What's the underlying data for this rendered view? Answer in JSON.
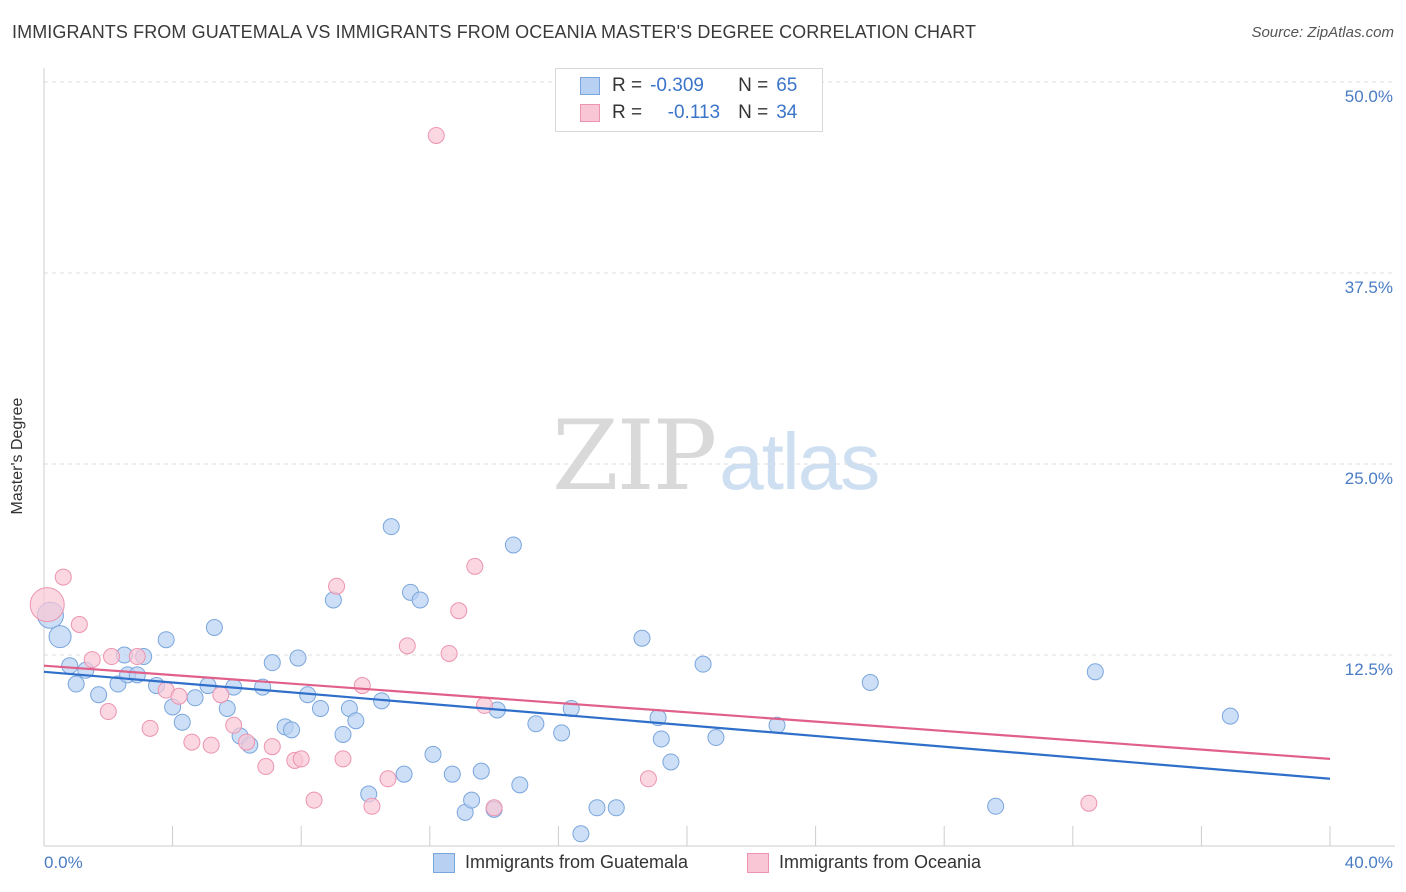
{
  "header": {
    "title": "IMMIGRANTS FROM GUATEMALA VS IMMIGRANTS FROM OCEANIA MASTER'S DEGREE CORRELATION CHART",
    "source": "Source: ZipAtlas.com"
  },
  "watermark": {
    "zip": "ZIP",
    "atlas": "atlas"
  },
  "legend": {
    "guatemala": {
      "r_label": "R =",
      "r_value": "-0.309",
      "n_label": "N =",
      "n_value": "65"
    },
    "oceania": {
      "r_label": "R =",
      "r_value": "-0.113",
      "n_label": "N =",
      "n_value": "34"
    }
  },
  "axes": {
    "y_label": "Master's Degree",
    "y_ticks": [
      "50.0%",
      "37.5%",
      "25.0%",
      "12.5%"
    ],
    "x_min_label": "0.0%",
    "x_max_label": "40.0%"
  },
  "colors": {
    "guatemala_fill": "#b8d1f2",
    "guatemala_stroke": "#7aa6dd",
    "guatemala_line": "#2f6fca",
    "oceania_fill": "#f9c6d6",
    "oceania_stroke": "#ec94b0",
    "oceania_line": "#e0608a",
    "tick_text": "#4a7cc4"
  },
  "chart_data": {
    "type": "scatter",
    "title": "IMMIGRANTS FROM GUATEMALA VS IMMIGRANTS FROM OCEANIA MASTER'S DEGREE CORRELATION CHART",
    "xlabel": "",
    "ylabel": "Master's Degree",
    "xlim": [
      0,
      40
    ],
    "ylim": [
      0,
      51
    ],
    "grid": true,
    "legend_position": "top-center",
    "series": [
      {
        "name": "Immigrants from Guatemala",
        "r": -0.309,
        "n": 65,
        "trend": {
          "x": [
            0,
            40
          ],
          "y": [
            11.4,
            4.4
          ]
        },
        "points": [
          [
            0.2,
            15.1,
            "l"
          ],
          [
            0.5,
            13.7,
            "m"
          ],
          [
            0.8,
            11.8
          ],
          [
            1.0,
            10.6
          ],
          [
            1.3,
            11.5
          ],
          [
            1.7,
            9.9
          ],
          [
            2.3,
            10.6
          ],
          [
            2.5,
            12.5
          ],
          [
            2.6,
            11.2
          ],
          [
            2.9,
            11.2
          ],
          [
            3.1,
            12.4
          ],
          [
            3.5,
            10.5
          ],
          [
            3.8,
            13.5
          ],
          [
            4.0,
            9.1
          ],
          [
            4.3,
            8.1
          ],
          [
            4.7,
            9.7
          ],
          [
            5.1,
            10.5
          ],
          [
            5.3,
            14.3
          ],
          [
            5.7,
            9.0
          ],
          [
            5.9,
            10.4
          ],
          [
            6.1,
            7.2
          ],
          [
            6.4,
            6.6
          ],
          [
            6.8,
            10.4
          ],
          [
            7.1,
            12.0
          ],
          [
            7.5,
            7.8
          ],
          [
            7.7,
            7.6
          ],
          [
            7.9,
            12.3
          ],
          [
            8.2,
            9.9
          ],
          [
            8.6,
            9.0
          ],
          [
            9.0,
            16.1
          ],
          [
            9.3,
            7.3
          ],
          [
            9.5,
            9.0
          ],
          [
            9.7,
            8.2
          ],
          [
            10.1,
            3.4
          ],
          [
            10.5,
            9.5
          ],
          [
            10.8,
            20.9
          ],
          [
            11.2,
            4.7
          ],
          [
            11.4,
            16.6
          ],
          [
            11.7,
            16.1
          ],
          [
            12.1,
            6.0
          ],
          [
            12.7,
            4.7
          ],
          [
            13.1,
            2.2
          ],
          [
            13.3,
            3.0
          ],
          [
            13.6,
            4.9
          ],
          [
            14.0,
            2.4
          ],
          [
            14.1,
            8.9
          ],
          [
            14.6,
            19.7
          ],
          [
            14.8,
            4.0
          ],
          [
            15.3,
            8.0
          ],
          [
            16.1,
            7.4
          ],
          [
            16.4,
            9.0
          ],
          [
            16.7,
            0.8
          ],
          [
            17.2,
            2.5
          ],
          [
            17.8,
            2.5
          ],
          [
            18.6,
            13.6
          ],
          [
            19.1,
            8.4
          ],
          [
            19.2,
            7.0
          ],
          [
            19.5,
            5.5
          ],
          [
            20.5,
            11.9
          ],
          [
            20.9,
            7.1
          ],
          [
            22.8,
            7.9
          ],
          [
            25.7,
            10.7
          ],
          [
            29.6,
            2.6
          ],
          [
            32.7,
            11.4
          ],
          [
            36.9,
            8.5
          ]
        ]
      },
      {
        "name": "Immigrants from Oceania",
        "r": -0.113,
        "n": 34,
        "trend": {
          "x": [
            0,
            40
          ],
          "y": [
            11.8,
            5.7
          ]
        },
        "points": [
          [
            0.1,
            15.8,
            "xl"
          ],
          [
            0.6,
            17.6
          ],
          [
            1.1,
            14.5
          ],
          [
            1.5,
            12.2
          ],
          [
            2.0,
            8.8
          ],
          [
            2.1,
            12.4
          ],
          [
            2.9,
            12.4
          ],
          [
            3.3,
            7.7
          ],
          [
            3.8,
            10.2
          ],
          [
            4.2,
            9.8
          ],
          [
            4.6,
            6.8
          ],
          [
            5.2,
            6.6
          ],
          [
            5.5,
            9.9
          ],
          [
            5.9,
            7.9
          ],
          [
            6.3,
            6.8
          ],
          [
            6.9,
            5.2
          ],
          [
            7.1,
            6.5
          ],
          [
            7.8,
            5.6
          ],
          [
            8.0,
            5.7
          ],
          [
            8.4,
            3.0
          ],
          [
            9.1,
            17.0
          ],
          [
            9.3,
            5.7
          ],
          [
            9.9,
            10.5
          ],
          [
            10.2,
            2.6
          ],
          [
            10.7,
            4.4
          ],
          [
            11.3,
            13.1
          ],
          [
            12.2,
            46.5
          ],
          [
            12.6,
            12.6
          ],
          [
            12.9,
            15.4
          ],
          [
            13.4,
            18.3
          ],
          [
            13.7,
            9.2
          ],
          [
            14.0,
            2.5
          ],
          [
            18.8,
            4.4
          ],
          [
            32.5,
            2.8
          ]
        ]
      }
    ]
  }
}
